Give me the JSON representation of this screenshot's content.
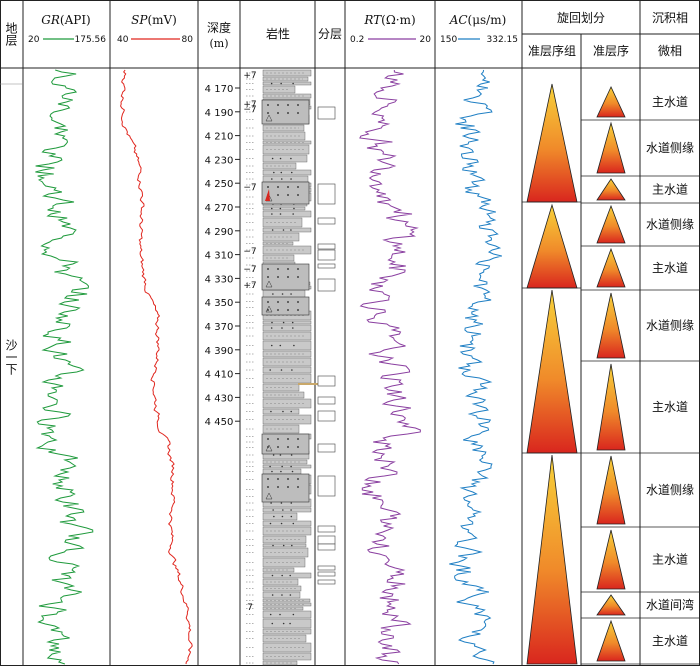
{
  "header": {
    "strata": "地层",
    "gr": {
      "name": "GR",
      "unit": "(API)",
      "min": "20",
      "max": "175.56",
      "color": "#1f9a3c"
    },
    "sp": {
      "name": "SP",
      "unit": "(mV)",
      "min": "40",
      "max": "80",
      "color": "#e0261e"
    },
    "depth": {
      "line1": "深度",
      "line2": "(m)"
    },
    "lithology": "岩性",
    "layering": "分层",
    "rt": {
      "name": "RT",
      "unit": "(Ω·m)",
      "min": "0.2",
      "max": "20",
      "color": "#8a3fa0"
    },
    "ac": {
      "name": "AC",
      "unit": "(μs/m)",
      "min": "150",
      "max": "332.15",
      "color": "#1f7fc4"
    },
    "cycle": {
      "title": "旋回划分",
      "sub1": "准层序组",
      "sub2": "准层序"
    },
    "facies": {
      "title": "沉积相",
      "sub": "微相"
    }
  },
  "strata_label": "沙一下",
  "depth_ticks": [
    "4 170",
    "4 190",
    "4 210",
    "4 230",
    "4 250",
    "4 270",
    "4 290",
    "4 310",
    "4 330",
    "4 350",
    "4 370",
    "4 390",
    "4 410",
    "4 430",
    "4 450"
  ],
  "facies": [
    "主水道",
    "水道侧缘",
    "主水道",
    "水道侧缘",
    "主水道",
    "水道侧缘",
    "主水道",
    "水道侧缘",
    "主水道",
    "水道间湾",
    "主水道"
  ],
  "lith_marks": [
    "+7",
    "−7",
    "+7",
    "−7",
    "−7",
    "−7",
    "+7",
    "7"
  ],
  "colors": {
    "grid": "#222",
    "lith_fill": "#c9c9c9",
    "tri_top": "#f7d23a",
    "tri_bottom": "#d9261e"
  }
}
